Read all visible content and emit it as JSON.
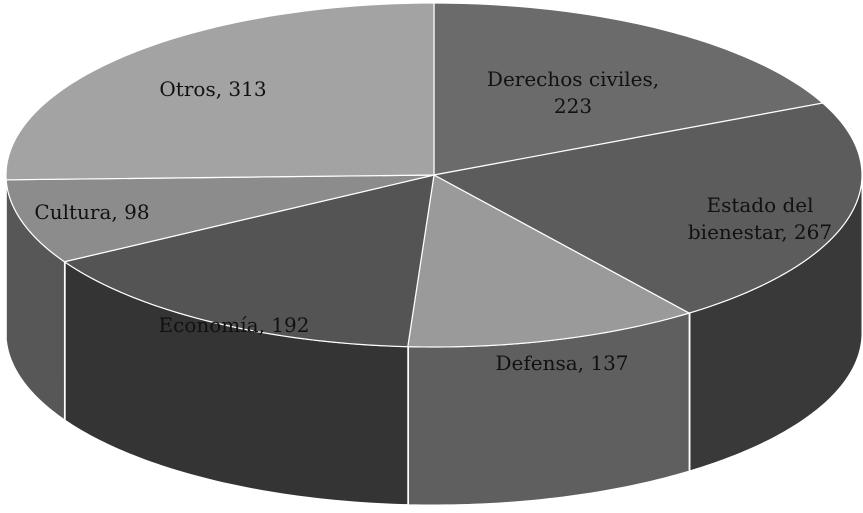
{
  "chart_data": {
    "type": "pie",
    "title": "",
    "style": "3d",
    "slices": [
      {
        "label_lines": [
          "Derechos civiles,",
          "223"
        ],
        "category": "Derechos civiles",
        "value": 223,
        "color": "#6b6b6b"
      },
      {
        "label_lines": [
          "Estado del",
          "bienestar, 267"
        ],
        "category": "Estado del bienestar",
        "value": 267,
        "color": "#5c5c5c"
      },
      {
        "label_lines": [
          "Defensa, 137"
        ],
        "category": "Defensa",
        "value": 137,
        "color": "#9a9a9a"
      },
      {
        "label_lines": [
          "Economía, 192"
        ],
        "category": "Economía",
        "value": 192,
        "color": "#545454"
      },
      {
        "label_lines": [
          "Cultura, 98"
        ],
        "category": "Cultura",
        "value": 98,
        "color": "#8c8c8c"
      },
      {
        "label_lines": [
          "Otros, 313"
        ],
        "category": "Otros",
        "value": 313,
        "color": "#a3a3a3"
      }
    ]
  }
}
